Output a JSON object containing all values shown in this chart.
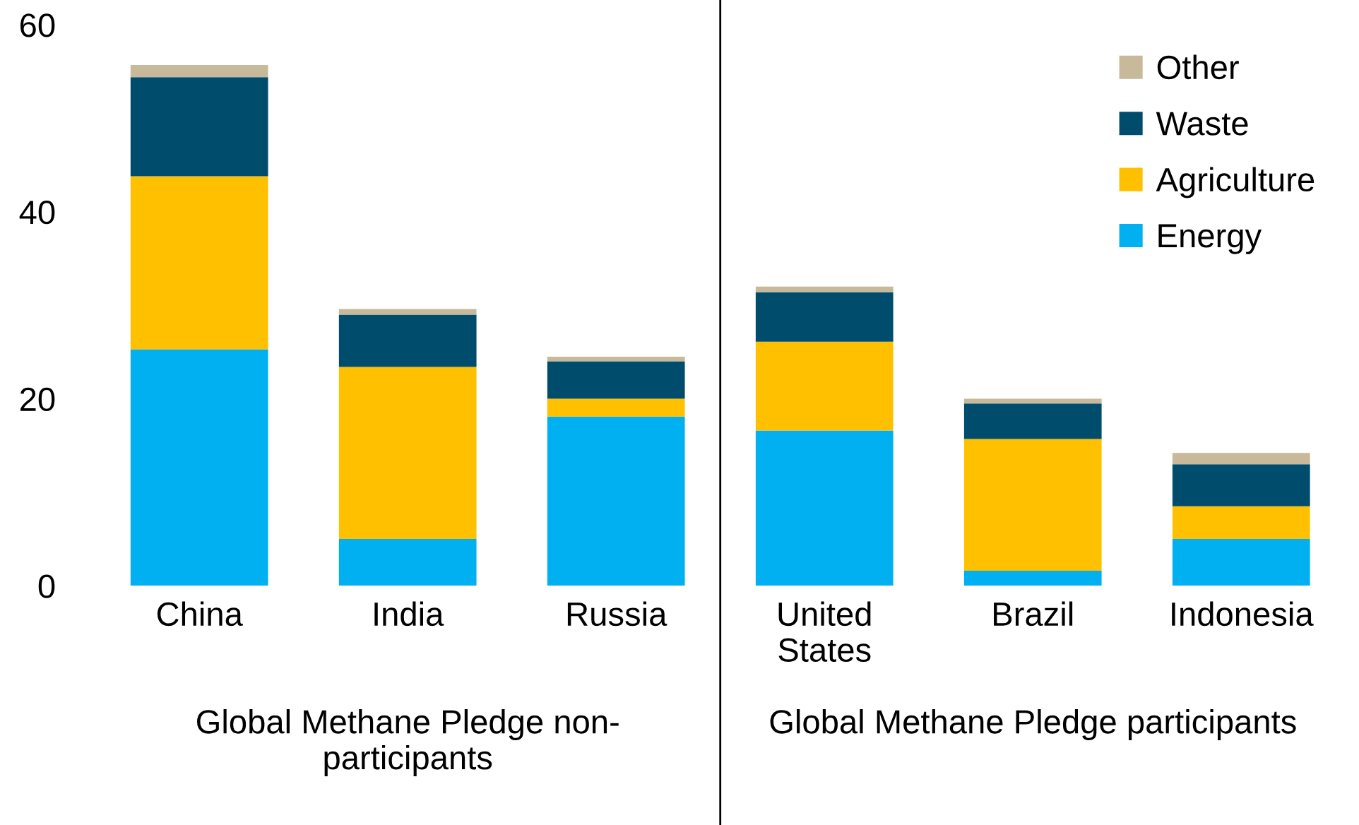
{
  "chart_data": {
    "type": "bar",
    "stacked": true,
    "categories": [
      "China",
      "India",
      "Russia",
      "United\nStates",
      "Brazil",
      "Indonesia"
    ],
    "series": [
      {
        "name": "Energy",
        "color": "#00b0f0",
        "values": [
          25.3,
          5.0,
          18.1,
          16.6,
          1.6,
          5.0
        ]
      },
      {
        "name": "Agriculture",
        "color": "#ffc000",
        "values": [
          18.5,
          18.4,
          1.9,
          9.5,
          14.1,
          3.5
        ]
      },
      {
        "name": "Waste",
        "color": "#004c6d",
        "values": [
          10.6,
          5.6,
          4.0,
          5.3,
          3.8,
          4.5
        ]
      },
      {
        "name": "Other",
        "color": "#c8b99a",
        "values": [
          1.3,
          0.6,
          0.5,
          0.6,
          0.5,
          1.2
        ]
      }
    ],
    "ylim": [
      0,
      60
    ],
    "yticks": [
      0,
      20,
      40,
      60
    ],
    "annotations": [
      "Global Methane Pledge non-\nparticipants",
      "Global Methane Pledge participants"
    ],
    "legend": "top right",
    "grid": false
  }
}
